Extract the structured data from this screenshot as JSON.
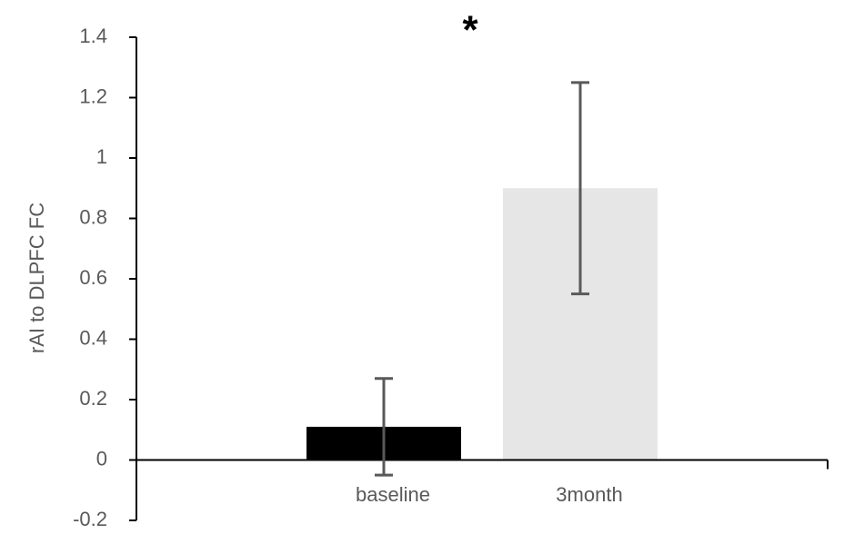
{
  "chart_data": {
    "type": "bar",
    "y_label": "rAI to DLPFC FC",
    "annotation": "*",
    "categories": [
      "baseline",
      "3month"
    ],
    "values": [
      0.11,
      0.9
    ],
    "errors": [
      0.16,
      0.35
    ],
    "colors": [
      "#000000",
      "#e6e6e6"
    ],
    "error_color": "#595959",
    "ylim": [
      -0.2,
      1.4
    ],
    "yticks": [
      -0.2,
      0,
      0.2,
      0.4,
      0.6,
      0.8,
      1,
      1.2,
      1.4
    ],
    "grid": false
  }
}
